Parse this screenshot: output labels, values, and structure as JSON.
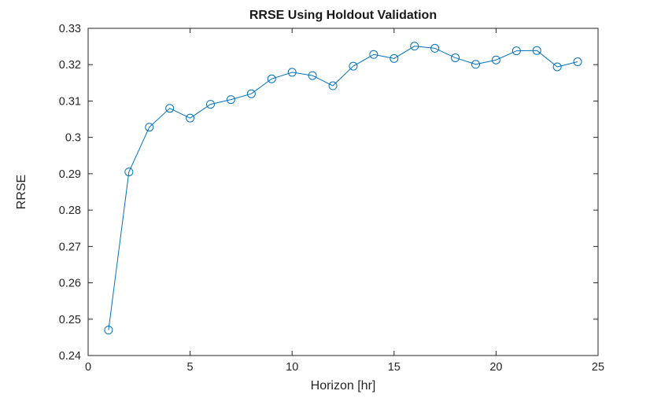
{
  "figure": {
    "background": "#ffffff",
    "axis_color": "#262626"
  },
  "chart_data": {
    "type": "line",
    "title": "RRSE Using Holdout Validation",
    "xlabel": "Horizon [hr]",
    "ylabel": "RRSE",
    "xlim": [
      0,
      25
    ],
    "ylim": [
      0.24,
      0.33
    ],
    "x_ticks": [
      0,
      5,
      10,
      15,
      20,
      25
    ],
    "x_tick_labels": [
      "0",
      "5",
      "10",
      "15",
      "20",
      "25"
    ],
    "y_ticks": [
      0.24,
      0.25,
      0.26,
      0.27,
      0.28,
      0.29,
      0.3,
      0.31,
      0.32,
      0.33
    ],
    "y_tick_labels": [
      "0.24",
      "0.25",
      "0.26",
      "0.27",
      "0.28",
      "0.29",
      "0.3",
      "0.31",
      "0.32",
      "0.33"
    ],
    "grid": false,
    "legend": null,
    "box": true,
    "line_color": "#0072BD",
    "marker": "circle-open",
    "marker_size": 5,
    "series": [
      {
        "name": "RRSE",
        "x": [
          1,
          2,
          3,
          4,
          5,
          6,
          7,
          8,
          9,
          10,
          11,
          12,
          13,
          14,
          15,
          16,
          17,
          18,
          19,
          20,
          21,
          22,
          23,
          24
        ],
        "y": [
          0.247,
          0.2905,
          0.3028,
          0.308,
          0.3053,
          0.3091,
          0.3104,
          0.312,
          0.3161,
          0.3179,
          0.317,
          0.3142,
          0.3196,
          0.3228,
          0.3217,
          0.3251,
          0.3245,
          0.3219,
          0.3201,
          0.3213,
          0.3238,
          0.3239,
          0.3194,
          0.3208
        ]
      }
    ]
  }
}
